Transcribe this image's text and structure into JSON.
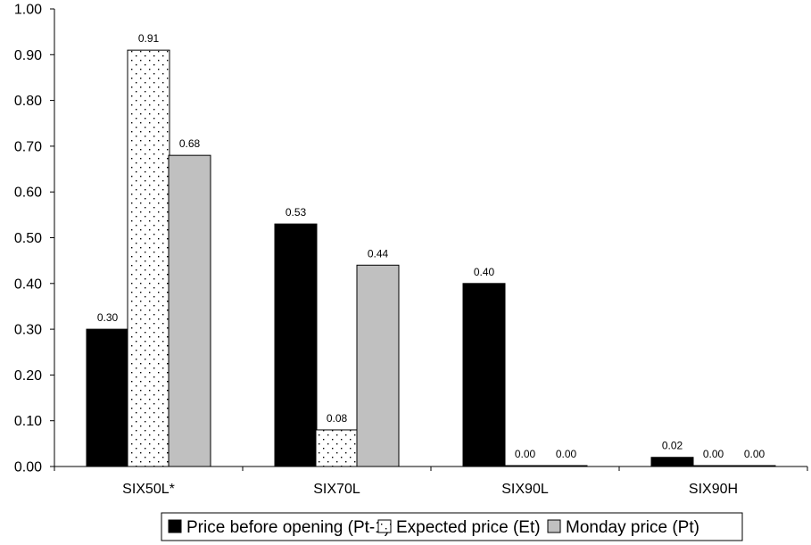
{
  "chart_data": {
    "type": "bar",
    "categories": [
      "SIX50L*",
      "SIX70L",
      "SIX90L",
      "SIX90H"
    ],
    "series": [
      {
        "name": "Price before opening (Pt-1)",
        "values": [
          0.3,
          0.53,
          0.4,
          0.02
        ],
        "labels": [
          "0.30",
          "0.53",
          "0.40",
          "0.02"
        ],
        "fill": "solid-black",
        "color": "#000000"
      },
      {
        "name": "Expected price (Et)",
        "values": [
          0.91,
          0.08,
          0.0,
          0.0
        ],
        "labels": [
          "0.91",
          "0.08",
          "0.00",
          "0.00"
        ],
        "fill": "dotted-white",
        "color": "#ffffff"
      },
      {
        "name": "Monday price (Pt)",
        "values": [
          0.68,
          0.44,
          0.0,
          0.0
        ],
        "labels": [
          "0.68",
          "0.44",
          "0.00",
          "0.00"
        ],
        "fill": "solid-gray",
        "color": "#c0c0c0"
      }
    ],
    "yticks": [
      "0.00",
      "0.10",
      "0.20",
      "0.30",
      "0.40",
      "0.50",
      "0.60",
      "0.70",
      "0.80",
      "0.90",
      "1.00"
    ],
    "ylim": [
      0,
      1.0
    ],
    "title": "",
    "xlabel": "",
    "ylabel": "",
    "grid": false,
    "legend_position": "bottom"
  }
}
